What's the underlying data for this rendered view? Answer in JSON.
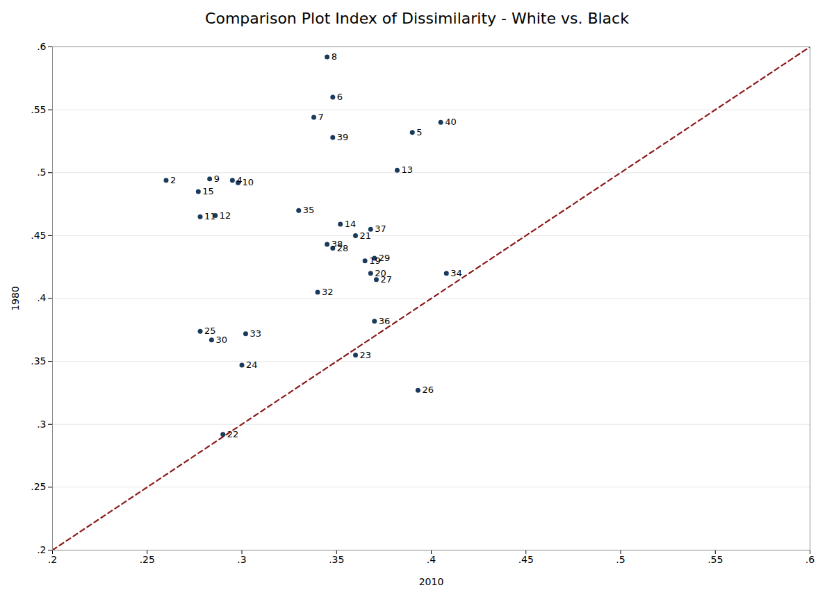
{
  "chart_data": {
    "type": "scatter",
    "title": "Comparison Plot Index of Dissimilarity - White vs. Black",
    "xlabel": "2010",
    "ylabel": "1980",
    "xlim": [
      0.2,
      0.6
    ],
    "ylim": [
      0.2,
      0.6
    ],
    "xticks": [
      {
        "value": 0.2,
        "label": ".2"
      },
      {
        "value": 0.25,
        "label": ".25"
      },
      {
        "value": 0.3,
        "label": ".3"
      },
      {
        "value": 0.35,
        "label": ".35"
      },
      {
        "value": 0.4,
        "label": ".4"
      },
      {
        "value": 0.45,
        "label": ".45"
      },
      {
        "value": 0.5,
        "label": ".5"
      },
      {
        "value": 0.55,
        "label": ".55"
      },
      {
        "value": 0.6,
        "label": ".6"
      }
    ],
    "yticks": [
      {
        "value": 0.2,
        "label": ".2"
      },
      {
        "value": 0.25,
        "label": ".25"
      },
      {
        "value": 0.3,
        "label": ".3"
      },
      {
        "value": 0.35,
        "label": ".35"
      },
      {
        "value": 0.4,
        "label": ".4"
      },
      {
        "value": 0.45,
        "label": ".45"
      },
      {
        "value": 0.5,
        "label": ".5"
      },
      {
        "value": 0.55,
        "label": ".55"
      },
      {
        "value": 0.6,
        "label": ".6"
      }
    ],
    "grid": "y",
    "series": [
      {
        "type": "scatter",
        "color": "#1a3a5c",
        "marker": "circle",
        "labels": [
          "2",
          "5",
          "6",
          "7",
          "8",
          "9",
          "10",
          "11",
          "12",
          "13",
          "14",
          "15",
          "19",
          "20",
          "21",
          "22",
          "23",
          "24",
          "25",
          "26",
          "27",
          "28",
          "29",
          "30",
          "32",
          "33",
          "34",
          "35",
          "36",
          "37",
          "38",
          "39",
          "40",
          "4"
        ],
        "x": [
          0.26,
          0.39,
          0.348,
          0.338,
          0.345,
          0.283,
          0.298,
          0.278,
          0.286,
          0.382,
          0.352,
          0.277,
          0.365,
          0.368,
          0.36,
          0.29,
          0.36,
          0.3,
          0.278,
          0.393,
          0.371,
          0.348,
          0.37,
          0.284,
          0.34,
          0.302,
          0.408,
          0.33,
          0.37,
          0.368,
          0.345,
          0.348,
          0.405,
          0.295
        ],
        "values": [
          0.494,
          0.532,
          0.56,
          0.544,
          0.592,
          0.495,
          0.492,
          0.465,
          0.466,
          0.502,
          0.459,
          0.485,
          0.43,
          0.42,
          0.45,
          0.292,
          0.355,
          0.347,
          0.374,
          0.327,
          0.415,
          0.44,
          0.432,
          0.367,
          0.405,
          0.372,
          0.42,
          0.47,
          0.382,
          0.455,
          0.443,
          0.528,
          0.54,
          0.494
        ]
      },
      {
        "type": "line",
        "color": "#8b1a1a",
        "line_style": "dashed",
        "x": [
          0.2,
          0.6
        ],
        "values": [
          0.2,
          0.6
        ]
      }
    ]
  }
}
